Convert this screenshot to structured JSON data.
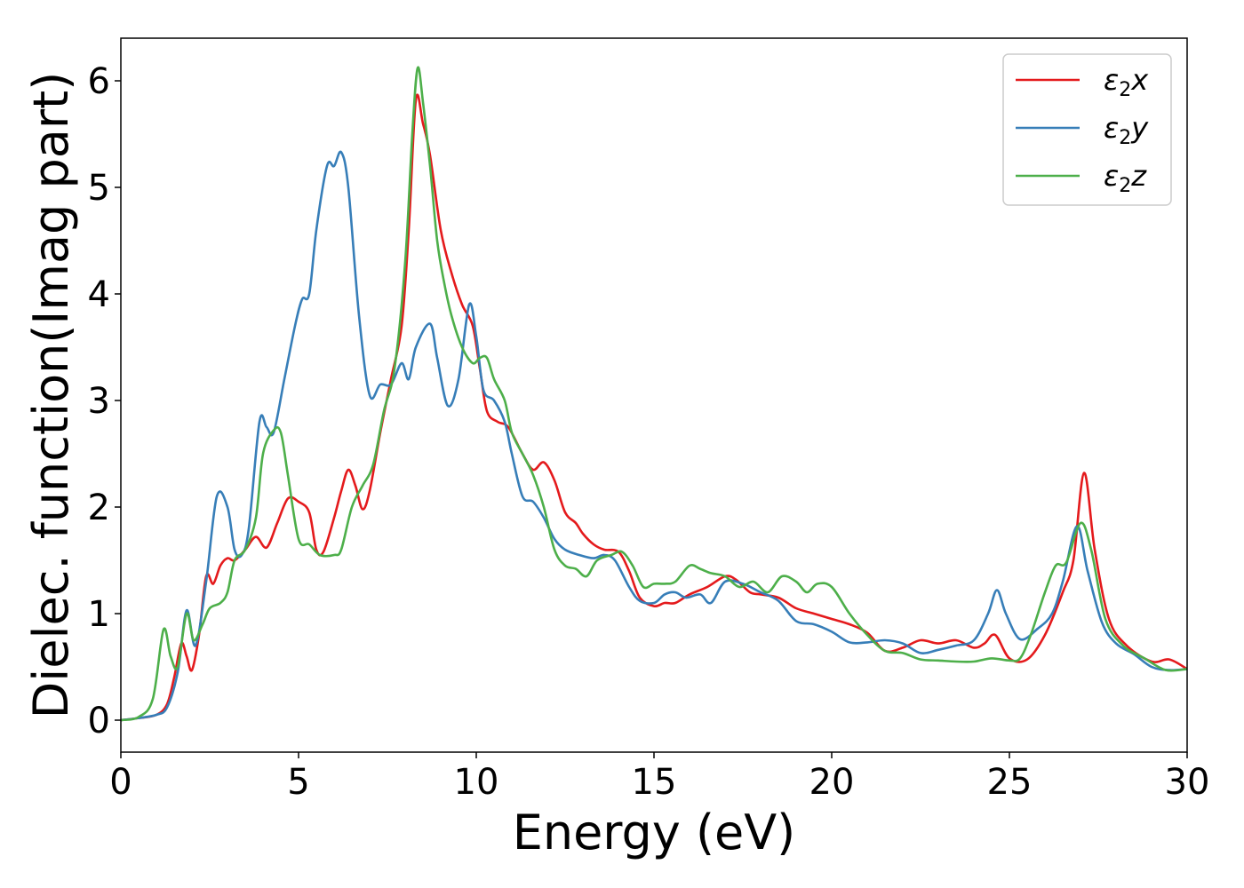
{
  "chart_data": {
    "type": "line",
    "xlabel": "Energy (eV)",
    "ylabel": "Dielec. function(Imag part)",
    "xlim": [
      0,
      30
    ],
    "ylim": [
      -0.3,
      6.4
    ],
    "xticks": [
      0,
      5,
      10,
      15,
      20,
      25,
      30
    ],
    "yticks": [
      0,
      1,
      2,
      3,
      4,
      5,
      6
    ],
    "grid": false,
    "legend_position": "top-right",
    "series": [
      {
        "name": "ε₂x",
        "label_base": "ε",
        "label_sub": "2",
        "label_var": "x",
        "color": "#e41a1c",
        "points": [
          [
            0,
            0
          ],
          [
            0.5,
            0.02
          ],
          [
            1.0,
            0.05
          ],
          [
            1.3,
            0.15
          ],
          [
            1.5,
            0.4
          ],
          [
            1.7,
            0.72
          ],
          [
            1.85,
            0.6
          ],
          [
            2.0,
            0.47
          ],
          [
            2.2,
            0.8
          ],
          [
            2.4,
            1.35
          ],
          [
            2.6,
            1.28
          ],
          [
            2.8,
            1.45
          ],
          [
            3.0,
            1.52
          ],
          [
            3.2,
            1.5
          ],
          [
            3.5,
            1.6
          ],
          [
            3.8,
            1.72
          ],
          [
            4.1,
            1.62
          ],
          [
            4.4,
            1.85
          ],
          [
            4.7,
            2.08
          ],
          [
            5.0,
            2.05
          ],
          [
            5.3,
            1.95
          ],
          [
            5.5,
            1.6
          ],
          [
            5.7,
            1.58
          ],
          [
            6.0,
            1.9
          ],
          [
            6.2,
            2.15
          ],
          [
            6.4,
            2.35
          ],
          [
            6.6,
            2.2
          ],
          [
            6.8,
            1.98
          ],
          [
            7.0,
            2.15
          ],
          [
            7.3,
            2.7
          ],
          [
            7.6,
            3.2
          ],
          [
            7.9,
            3.7
          ],
          [
            8.1,
            4.6
          ],
          [
            8.3,
            5.82
          ],
          [
            8.5,
            5.6
          ],
          [
            8.7,
            5.3
          ],
          [
            9.0,
            4.6
          ],
          [
            9.3,
            4.2
          ],
          [
            9.6,
            3.9
          ],
          [
            9.9,
            3.7
          ],
          [
            10.1,
            3.3
          ],
          [
            10.3,
            2.9
          ],
          [
            10.6,
            2.8
          ],
          [
            10.9,
            2.75
          ],
          [
            11.3,
            2.5
          ],
          [
            11.6,
            2.35
          ],
          [
            11.9,
            2.42
          ],
          [
            12.2,
            2.25
          ],
          [
            12.5,
            1.95
          ],
          [
            12.8,
            1.85
          ],
          [
            13.0,
            1.75
          ],
          [
            13.3,
            1.65
          ],
          [
            13.6,
            1.6
          ],
          [
            14.0,
            1.58
          ],
          [
            14.3,
            1.4
          ],
          [
            14.6,
            1.15
          ],
          [
            15.0,
            1.07
          ],
          [
            15.3,
            1.1
          ],
          [
            15.6,
            1.1
          ],
          [
            16.0,
            1.18
          ],
          [
            16.5,
            1.25
          ],
          [
            17.0,
            1.35
          ],
          [
            17.3,
            1.32
          ],
          [
            17.7,
            1.2
          ],
          [
            18.0,
            1.18
          ],
          [
            18.5,
            1.15
          ],
          [
            19.0,
            1.05
          ],
          [
            19.5,
            1.0
          ],
          [
            20.0,
            0.95
          ],
          [
            20.5,
            0.9
          ],
          [
            21.0,
            0.82
          ],
          [
            21.5,
            0.65
          ],
          [
            22.0,
            0.68
          ],
          [
            22.5,
            0.75
          ],
          [
            23.0,
            0.72
          ],
          [
            23.5,
            0.75
          ],
          [
            24.0,
            0.68
          ],
          [
            24.3,
            0.72
          ],
          [
            24.6,
            0.8
          ],
          [
            25.0,
            0.58
          ],
          [
            25.5,
            0.57
          ],
          [
            26.0,
            0.8
          ],
          [
            26.5,
            1.2
          ],
          [
            26.8,
            1.5
          ],
          [
            27.1,
            2.32
          ],
          [
            27.4,
            1.6
          ],
          [
            27.8,
            0.95
          ],
          [
            28.3,
            0.7
          ],
          [
            29.0,
            0.55
          ],
          [
            29.5,
            0.57
          ],
          [
            30.0,
            0.48
          ]
        ]
      },
      {
        "name": "ε₂y",
        "label_base": "ε",
        "label_sub": "2",
        "label_var": "y",
        "color": "#377eb8",
        "points": [
          [
            0,
            0
          ],
          [
            0.5,
            0.02
          ],
          [
            1.0,
            0.05
          ],
          [
            1.3,
            0.12
          ],
          [
            1.6,
            0.45
          ],
          [
            1.85,
            1.03
          ],
          [
            2.1,
            0.7
          ],
          [
            2.4,
            1.3
          ],
          [
            2.7,
            2.1
          ],
          [
            3.0,
            2.0
          ],
          [
            3.2,
            1.6
          ],
          [
            3.4,
            1.55
          ],
          [
            3.6,
            1.8
          ],
          [
            3.9,
            2.8
          ],
          [
            4.1,
            2.75
          ],
          [
            4.3,
            2.7
          ],
          [
            4.6,
            3.2
          ],
          [
            4.9,
            3.7
          ],
          [
            5.1,
            3.95
          ],
          [
            5.3,
            4.0
          ],
          [
            5.5,
            4.6
          ],
          [
            5.8,
            5.2
          ],
          [
            6.0,
            5.2
          ],
          [
            6.2,
            5.33
          ],
          [
            6.4,
            5.0
          ],
          [
            6.7,
            3.8
          ],
          [
            7.0,
            3.05
          ],
          [
            7.3,
            3.15
          ],
          [
            7.6,
            3.15
          ],
          [
            7.9,
            3.35
          ],
          [
            8.1,
            3.2
          ],
          [
            8.3,
            3.5
          ],
          [
            8.7,
            3.72
          ],
          [
            8.9,
            3.4
          ],
          [
            9.2,
            2.95
          ],
          [
            9.5,
            3.2
          ],
          [
            9.8,
            3.9
          ],
          [
            10.0,
            3.6
          ],
          [
            10.2,
            3.1
          ],
          [
            10.5,
            3.0
          ],
          [
            10.8,
            2.8
          ],
          [
            11.0,
            2.5
          ],
          [
            11.3,
            2.1
          ],
          [
            11.6,
            2.05
          ],
          [
            11.9,
            1.9
          ],
          [
            12.2,
            1.7
          ],
          [
            12.5,
            1.6
          ],
          [
            12.9,
            1.55
          ],
          [
            13.3,
            1.52
          ],
          [
            13.6,
            1.55
          ],
          [
            13.9,
            1.5
          ],
          [
            14.3,
            1.25
          ],
          [
            14.6,
            1.12
          ],
          [
            15.0,
            1.1
          ],
          [
            15.3,
            1.18
          ],
          [
            15.6,
            1.2
          ],
          [
            15.9,
            1.15
          ],
          [
            16.3,
            1.18
          ],
          [
            16.6,
            1.1
          ],
          [
            17.0,
            1.3
          ],
          [
            17.5,
            1.28
          ],
          [
            18.0,
            1.2
          ],
          [
            18.5,
            1.12
          ],
          [
            19.0,
            0.93
          ],
          [
            19.5,
            0.9
          ],
          [
            20.0,
            0.83
          ],
          [
            20.5,
            0.73
          ],
          [
            21.0,
            0.73
          ],
          [
            21.5,
            0.75
          ],
          [
            22.0,
            0.72
          ],
          [
            22.5,
            0.63
          ],
          [
            23.0,
            0.66
          ],
          [
            23.5,
            0.7
          ],
          [
            24.0,
            0.75
          ],
          [
            24.4,
            1.0
          ],
          [
            24.65,
            1.22
          ],
          [
            24.9,
            1.0
          ],
          [
            25.3,
            0.76
          ],
          [
            25.8,
            0.86
          ],
          [
            26.2,
            1.0
          ],
          [
            26.5,
            1.3
          ],
          [
            26.9,
            1.82
          ],
          [
            27.2,
            1.4
          ],
          [
            27.6,
            0.92
          ],
          [
            28.0,
            0.72
          ],
          [
            28.5,
            0.62
          ],
          [
            29.0,
            0.5
          ],
          [
            29.5,
            0.47
          ],
          [
            30.0,
            0.48
          ]
        ]
      },
      {
        "name": "ε₂z",
        "label_base": "ε",
        "label_sub": "2",
        "label_var": "z",
        "color": "#4daf4a",
        "points": [
          [
            0,
            0
          ],
          [
            0.5,
            0.03
          ],
          [
            0.9,
            0.2
          ],
          [
            1.2,
            0.85
          ],
          [
            1.4,
            0.6
          ],
          [
            1.6,
            0.5
          ],
          [
            1.85,
            1.0
          ],
          [
            2.05,
            0.75
          ],
          [
            2.3,
            0.9
          ],
          [
            2.5,
            1.05
          ],
          [
            2.8,
            1.1
          ],
          [
            3.0,
            1.2
          ],
          [
            3.2,
            1.5
          ],
          [
            3.5,
            1.6
          ],
          [
            3.8,
            1.9
          ],
          [
            4.0,
            2.5
          ],
          [
            4.3,
            2.72
          ],
          [
            4.5,
            2.7
          ],
          [
            4.7,
            2.3
          ],
          [
            5.0,
            1.7
          ],
          [
            5.3,
            1.65
          ],
          [
            5.6,
            1.55
          ],
          [
            6.0,
            1.55
          ],
          [
            6.2,
            1.6
          ],
          [
            6.5,
            2.0
          ],
          [
            6.8,
            2.2
          ],
          [
            7.1,
            2.4
          ],
          [
            7.4,
            2.9
          ],
          [
            7.7,
            3.3
          ],
          [
            8.0,
            4.3
          ],
          [
            8.2,
            5.5
          ],
          [
            8.35,
            6.12
          ],
          [
            8.5,
            5.8
          ],
          [
            8.7,
            5.2
          ],
          [
            8.9,
            4.5
          ],
          [
            9.1,
            4.1
          ],
          [
            9.3,
            3.8
          ],
          [
            9.6,
            3.5
          ],
          [
            9.9,
            3.35
          ],
          [
            10.1,
            3.4
          ],
          [
            10.3,
            3.4
          ],
          [
            10.5,
            3.2
          ],
          [
            10.8,
            3.0
          ],
          [
            11.0,
            2.7
          ],
          [
            11.3,
            2.5
          ],
          [
            11.6,
            2.3
          ],
          [
            11.9,
            2.0
          ],
          [
            12.2,
            1.6
          ],
          [
            12.5,
            1.45
          ],
          [
            12.8,
            1.42
          ],
          [
            13.1,
            1.35
          ],
          [
            13.4,
            1.5
          ],
          [
            13.8,
            1.55
          ],
          [
            14.1,
            1.58
          ],
          [
            14.4,
            1.45
          ],
          [
            14.7,
            1.25
          ],
          [
            15.0,
            1.28
          ],
          [
            15.3,
            1.28
          ],
          [
            15.6,
            1.3
          ],
          [
            16.0,
            1.45
          ],
          [
            16.3,
            1.42
          ],
          [
            16.6,
            1.38
          ],
          [
            17.0,
            1.35
          ],
          [
            17.4,
            1.25
          ],
          [
            17.8,
            1.3
          ],
          [
            18.2,
            1.2
          ],
          [
            18.6,
            1.35
          ],
          [
            19.0,
            1.3
          ],
          [
            19.3,
            1.2
          ],
          [
            19.6,
            1.28
          ],
          [
            20.0,
            1.25
          ],
          [
            20.5,
            1.0
          ],
          [
            21.0,
            0.8
          ],
          [
            21.5,
            0.65
          ],
          [
            22.0,
            0.63
          ],
          [
            22.5,
            0.57
          ],
          [
            23.0,
            0.56
          ],
          [
            23.5,
            0.55
          ],
          [
            24.0,
            0.55
          ],
          [
            24.5,
            0.58
          ],
          [
            25.0,
            0.56
          ],
          [
            25.3,
            0.58
          ],
          [
            25.6,
            0.8
          ],
          [
            26.0,
            1.2
          ],
          [
            26.3,
            1.45
          ],
          [
            26.6,
            1.48
          ],
          [
            27.0,
            1.85
          ],
          [
            27.3,
            1.6
          ],
          [
            27.7,
            0.95
          ],
          [
            28.2,
            0.7
          ],
          [
            28.8,
            0.58
          ],
          [
            29.4,
            0.47
          ],
          [
            30.0,
            0.48
          ]
        ]
      }
    ]
  }
}
